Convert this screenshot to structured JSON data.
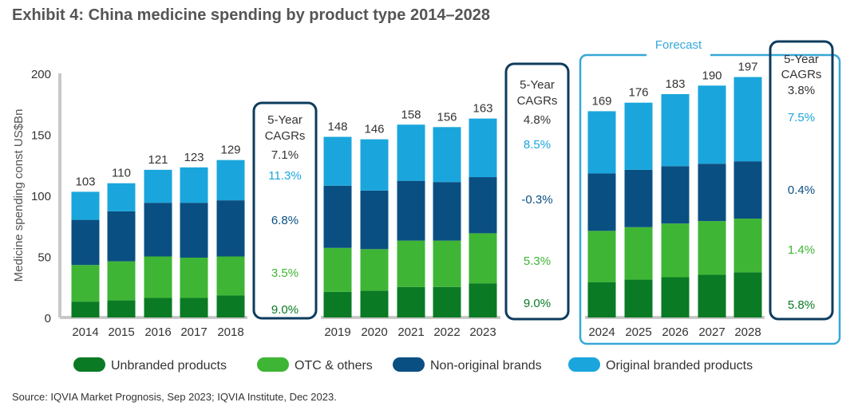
{
  "title": "Exhibit 4: China medicine spending by product type 2014–2028",
  "source": "Source: IQVIA Market Prognosis, Sep 2023; IQVIA Institute, Dec 2023.",
  "colors": {
    "unbranded": "#0a7a24",
    "otc": "#3fb535",
    "non_original": "#0a4f82",
    "original": "#1aa6dc",
    "box_border": "#0d3b5c",
    "forecast_border": "#36a8d8",
    "axis": "#c8c8c8"
  },
  "chart_data": {
    "type": "bar",
    "stacked": true,
    "title": "Exhibit 4: China medicine spending by product type 2014–2028",
    "xlabel": "",
    "ylabel": "Medicine spending const US$Bn",
    "ylim": [
      0,
      200
    ],
    "yticks": [
      "0",
      "50",
      "100",
      "150",
      "200"
    ],
    "categories": [
      "2014",
      "2015",
      "2016",
      "2017",
      "2018",
      "2019",
      "2020",
      "2021",
      "2022",
      "2023",
      "2024",
      "2025",
      "2026",
      "2027",
      "2028"
    ],
    "totals": [
      103,
      110,
      121,
      123,
      129,
      148,
      146,
      158,
      156,
      163,
      169,
      176,
      183,
      190,
      197
    ],
    "total_labels": [
      "103",
      "110",
      "121",
      "123",
      "129",
      "148",
      "146",
      "158",
      "156",
      "163",
      "169",
      "176",
      "183",
      "190",
      "197"
    ],
    "series": [
      {
        "name": "Unbranded products",
        "color_key": "unbranded",
        "values": [
          13,
          14,
          16,
          16,
          18,
          21,
          22,
          25,
          25,
          28,
          29,
          31,
          33,
          35,
          37
        ]
      },
      {
        "name": "OTC & others",
        "color_key": "otc",
        "values": [
          30,
          32,
          34,
          33,
          32,
          36,
          34,
          38,
          38,
          41,
          42,
          43,
          44,
          44,
          44
        ]
      },
      {
        "name": "Non-original brands",
        "color_key": "non_original",
        "values": [
          37,
          41,
          44,
          45,
          46,
          51,
          48,
          49,
          48,
          46,
          47,
          47,
          47,
          47,
          47
        ]
      },
      {
        "name": "Original branded products",
        "color_key": "original",
        "values": [
          23,
          23,
          27,
          29,
          33,
          40,
          42,
          46,
          45,
          48,
          51,
          55,
          59,
          64,
          69
        ]
      }
    ],
    "legend": [
      {
        "label": "Unbranded products",
        "color_key": "unbranded"
      },
      {
        "label": "OTC & others",
        "color_key": "otc"
      },
      {
        "label": "Non-original brands",
        "color_key": "non_original"
      },
      {
        "label": "Original branded products",
        "color_key": "original"
      }
    ],
    "legend_position": "bottom",
    "forecast_label": "Forecast",
    "cagr_boxes": [
      {
        "heading_line1": "5-Year",
        "heading_line2": "CAGRs",
        "total": "7.1%",
        "original": "11.3%",
        "non_original": "6.8%",
        "otc": "3.5%",
        "unbranded": "9.0%"
      },
      {
        "heading_line1": "5-Year",
        "heading_line2": "CAGRs",
        "total": "4.8%",
        "original": "8.5%",
        "non_original": "-0.3%",
        "otc": "5.3%",
        "unbranded": "9.0%"
      },
      {
        "heading_line1": "5-Year",
        "heading_line2": "CAGRs",
        "total": "3.8%",
        "original": "7.5%",
        "non_original": "0.4%",
        "otc": "1.4%",
        "unbranded": "5.8%"
      }
    ]
  }
}
